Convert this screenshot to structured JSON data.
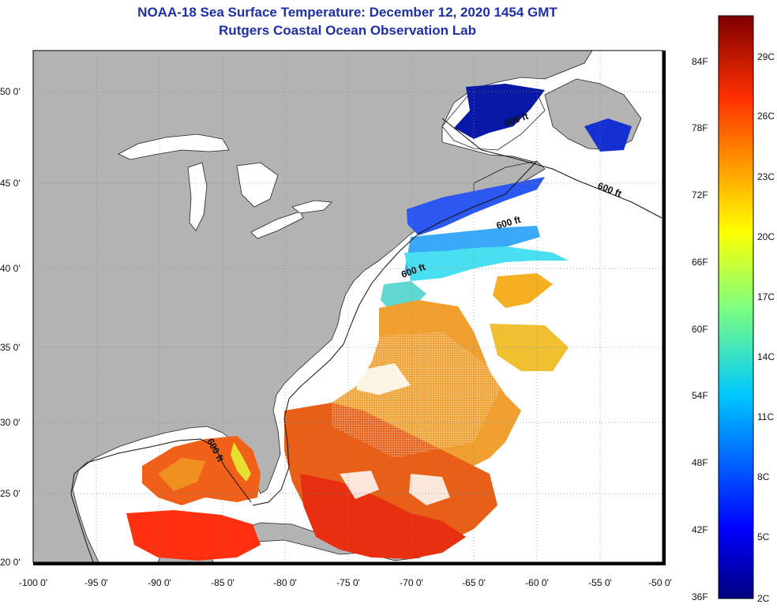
{
  "title": {
    "line1": "NOAA-18 Sea Surface Temperature:  December 12, 2020 1454 GMT",
    "line2": "Rutgers Coastal Ocean Observation Lab"
  },
  "axes": {
    "lon_labels": [
      "-100 0'",
      "-95 0'",
      "-90 0'",
      "-85 0'",
      "-80 0'",
      "-75 0'",
      "-70 0'",
      "-65 0'",
      "-60 0'",
      "-55 0'",
      "-50 0'"
    ],
    "lat_labels": [
      "50 0'",
      "45 0'",
      "40 0'",
      "35 0'",
      "30 0'",
      "25 0'",
      "20 0'"
    ]
  },
  "contour_label": "600 ft",
  "colorbar": {
    "fahrenheit": [
      "84F",
      "78F",
      "72F",
      "66F",
      "60F",
      "54F",
      "48F",
      "42F",
      "36F"
    ],
    "celsius": [
      "29C",
      "26C",
      "23C",
      "20C",
      "17C",
      "14C",
      "11C",
      "8C",
      "5C",
      "2C"
    ]
  },
  "colors": {
    "land": "#b3b3b3",
    "ocean_no_data": "#ffffff",
    "title": "#1e2fa8",
    "grid": "#888888"
  }
}
